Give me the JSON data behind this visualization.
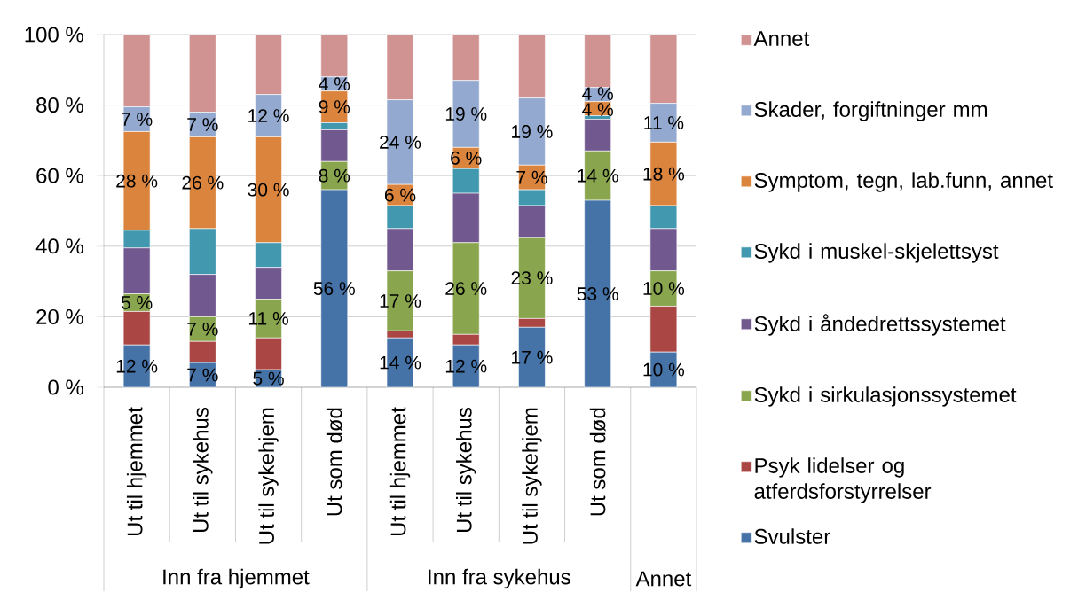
{
  "chart_data": {
    "type": "bar",
    "stacked": true,
    "categories": [
      "Ut til hjemmet",
      "Ut til sykehus",
      "Ut til sykehjem",
      "Ut som død",
      "Ut til hjemmet",
      "Ut til sykehus",
      "Ut til sykehjem",
      "Ut som død",
      null
    ],
    "series": [
      {
        "name": "Svulster",
        "color": "#4572A7",
        "values": [
          12,
          7,
          5,
          56,
          14,
          12,
          17,
          53,
          10
        ],
        "value_labels": [
          "12 %",
          "7 %",
          "5 %",
          "56 %",
          "14 %",
          "12 %",
          "17 %",
          "53 %",
          "10 %"
        ]
      },
      {
        "name": "Psyk lidelser og atferdsforstyrrelser",
        "color": "#AA4643",
        "values": [
          9.5,
          6,
          9,
          0,
          2,
          3,
          2.5,
          0,
          13
        ]
      },
      {
        "name": "Sykd i sirkulasjonssystemet",
        "color": "#89A54E",
        "values": [
          5,
          7,
          11,
          8,
          17,
          26,
          23,
          14,
          10
        ],
        "value_labels": [
          "5 %",
          "7 %",
          "11 %",
          "8 %",
          "17 %",
          "26 %",
          "23 %",
          "14 %",
          "10 %"
        ]
      },
      {
        "name": "Sykd i åndedrettssystemet",
        "color": "#71588F",
        "values": [
          13,
          12,
          9,
          9,
          12,
          14,
          9,
          9,
          12
        ]
      },
      {
        "name": "Sykd i muskel-skjelettsyst",
        "color": "#4198AF",
        "values": [
          5,
          13,
          7,
          2,
          6.5,
          7,
          4.5,
          1,
          6.5
        ]
      },
      {
        "name": "Symptom, tegn, lab.funn, annet",
        "color": "#DB843D",
        "values": [
          28,
          26,
          30,
          9,
          6,
          6,
          7,
          4,
          18
        ],
        "value_labels": [
          "28 %",
          "26 %",
          "30 %",
          "9 %",
          "6 %",
          "6 %",
          "7 %",
          "4 %",
          "18 %"
        ]
      },
      {
        "name": "Skader, forgiftninger mm",
        "color": "#93A9CF",
        "values": [
          7,
          7,
          12,
          4,
          24,
          19,
          19,
          4,
          11
        ],
        "value_labels": [
          "7 %",
          "7 %",
          "12 %",
          "4 %",
          "24 %",
          "19 %",
          "19 %",
          "4 %",
          "11 %"
        ]
      },
      {
        "name": "Annet",
        "color": "#D19392",
        "values": [
          20.5,
          22,
          17,
          12,
          18.5,
          13,
          18,
          15,
          19.5
        ]
      }
    ],
    "ylim": [
      0,
      100
    ],
    "yticks": [
      {
        "value": 0,
        "label": "0 %"
      },
      {
        "value": 20,
        "label": "20 %"
      },
      {
        "value": 40,
        "label": "40 %"
      },
      {
        "value": 60,
        "label": "60 %"
      },
      {
        "value": 80,
        "label": "80 %"
      },
      {
        "value": 100,
        "label": "100 %"
      }
    ],
    "grid": "y",
    "legend": "right",
    "annotations": [
      "Inn fra hjemmet",
      "Inn fra sykehus",
      "Annet"
    ]
  }
}
